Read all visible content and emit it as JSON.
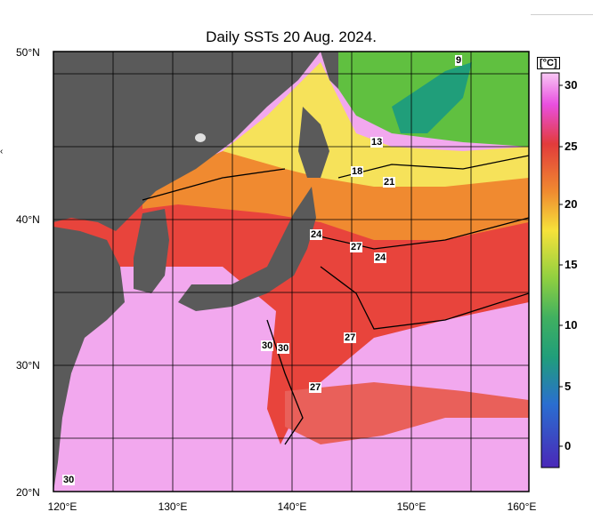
{
  "title": "Daily SSTs 20 Aug. 2024.",
  "lat_labels": [
    "50°N",
    "40°N",
    "30°N",
    "20°N"
  ],
  "lon_labels": [
    "120°E",
    "130°E",
    "140°E",
    "150°E",
    "160°E"
  ],
  "colorbar": {
    "unit": "[°C]",
    "ticks": [
      "30",
      "25",
      "20",
      "15",
      "10",
      "5",
      "0"
    ],
    "colors": [
      "#e94fe0",
      "#e23b3b",
      "#f0a020",
      "#f6e23a",
      "#60c040",
      "#209e7a",
      "#2060d0",
      "#4030c0"
    ]
  },
  "contour_labels": [
    "9",
    "13",
    "18",
    "21",
    "24",
    "27",
    "24",
    "27",
    "27",
    "30",
    "30",
    "30"
  ],
  "colors": {
    "land": "#5a5a5a",
    "warm_sea": "#f2a8ee",
    "red_sea": "#e8443c",
    "orange_sea": "#f08a30",
    "yellow_sea": "#f6e25a",
    "green_sea": "#60c040"
  },
  "side_mark": "‹"
}
